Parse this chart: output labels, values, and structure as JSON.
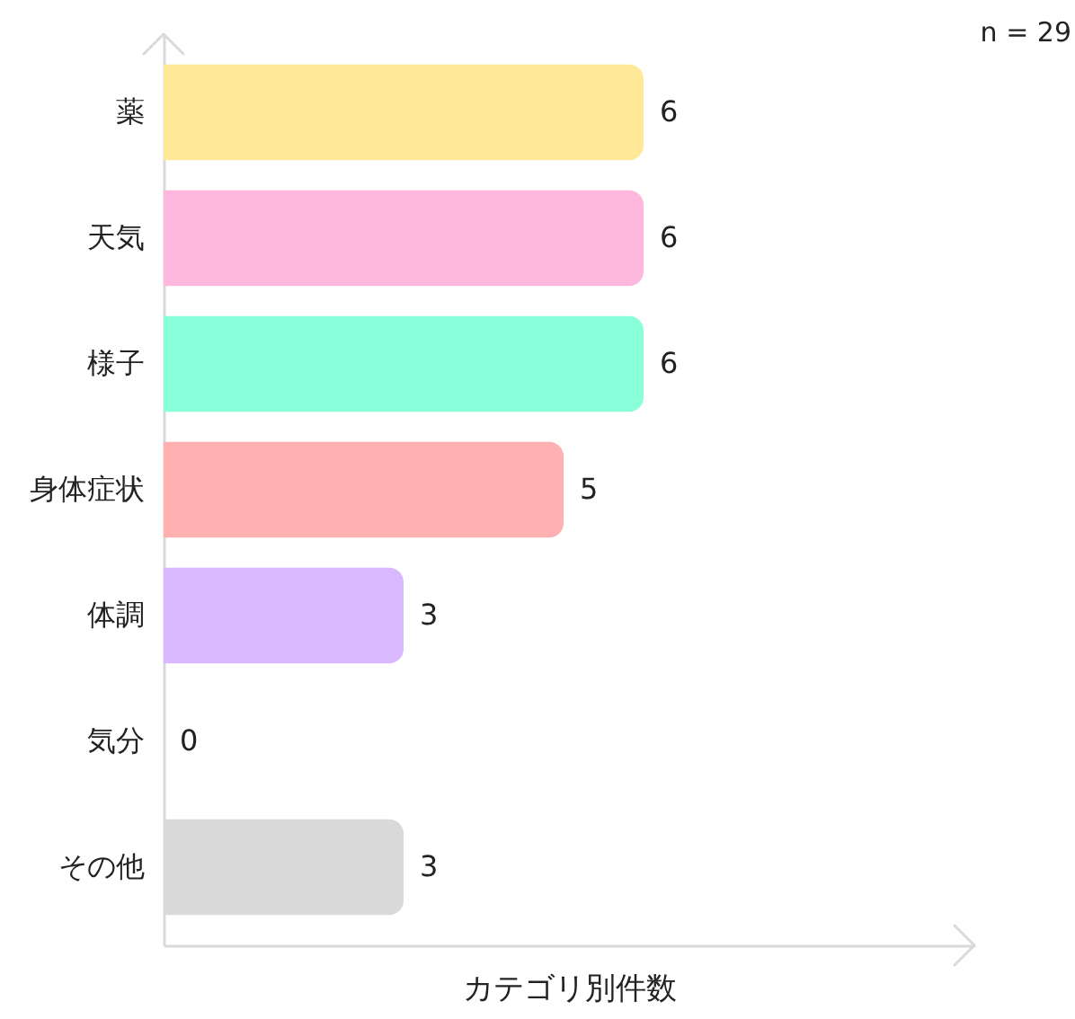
{
  "chart_data": {
    "type": "bar",
    "orientation": "horizontal",
    "xlabel": "カテゴリ別件数",
    "categories": [
      "薬",
      "天気",
      "様子",
      "身体症状",
      "体調",
      "気分",
      "その他"
    ],
    "values": [
      6,
      6,
      6,
      5,
      3,
      0,
      3
    ],
    "colors": [
      "#ffe999",
      "#ffb8dd",
      "#88ffd9",
      "#ffb0b0",
      "#d8b8ff",
      null,
      "#d9d9d9"
    ],
    "data_labels": true,
    "tick_labels": "y",
    "annotations": [
      "n = 29"
    ]
  }
}
